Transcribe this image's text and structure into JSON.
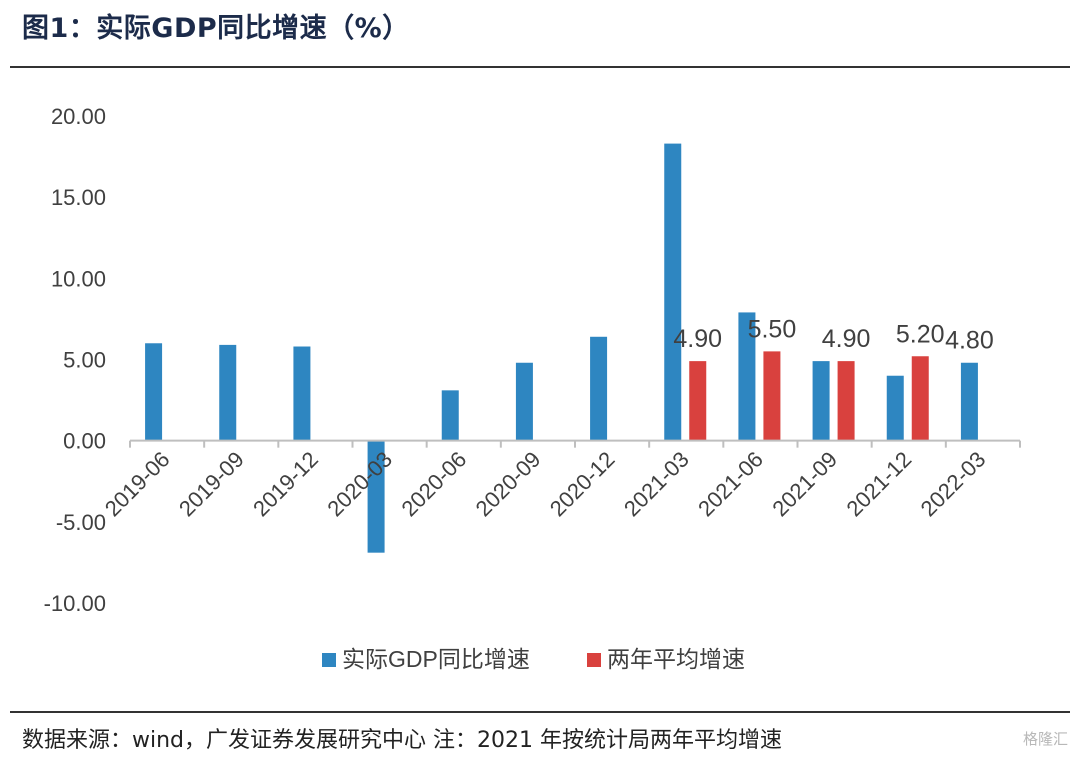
{
  "header": {
    "title": "图1：实际GDP同比增速（%）"
  },
  "footer": {
    "source": "数据来源：wind，广发证券发展研究中心 注：2021 年按统计局两年平均增速",
    "watermark": "格隆汇"
  },
  "colors": {
    "series1": "#2e86c1",
    "series2": "#d9413e",
    "axis": "#bfbfbf",
    "text": "#404040"
  },
  "chart_data": {
    "type": "bar",
    "categories": [
      "2019-06",
      "2019-09",
      "2019-12",
      "2020-03",
      "2020-06",
      "2020-09",
      "2020-12",
      "2021-03",
      "2021-06",
      "2021-09",
      "2021-12",
      "2022-03"
    ],
    "series": [
      {
        "name": "实际GDP同比增速",
        "values": [
          6.0,
          5.9,
          5.8,
          -6.9,
          3.1,
          4.8,
          6.4,
          18.3,
          7.9,
          4.9,
          4.0,
          4.8
        ]
      },
      {
        "name": "两年平均增速",
        "values": [
          null,
          null,
          null,
          null,
          null,
          null,
          null,
          4.9,
          5.5,
          4.9,
          5.2,
          null
        ]
      }
    ],
    "data_labels": [
      {
        "text": "4.90",
        "series": 1,
        "index": 7
      },
      {
        "text": "5.50",
        "series": 1,
        "index": 8
      },
      {
        "text": "4.90",
        "series": 1,
        "index": 9
      },
      {
        "text": "5.20",
        "series": 1,
        "index": 10
      },
      {
        "text": "4.80",
        "series": 0,
        "index": 11
      }
    ],
    "y_ticks": [
      "20.00",
      "15.00",
      "10.00",
      "5.00",
      "0.00",
      "-5.00",
      "-10.00"
    ],
    "ylim": [
      -10,
      20
    ],
    "legend_position": "bottom",
    "grid": false
  }
}
